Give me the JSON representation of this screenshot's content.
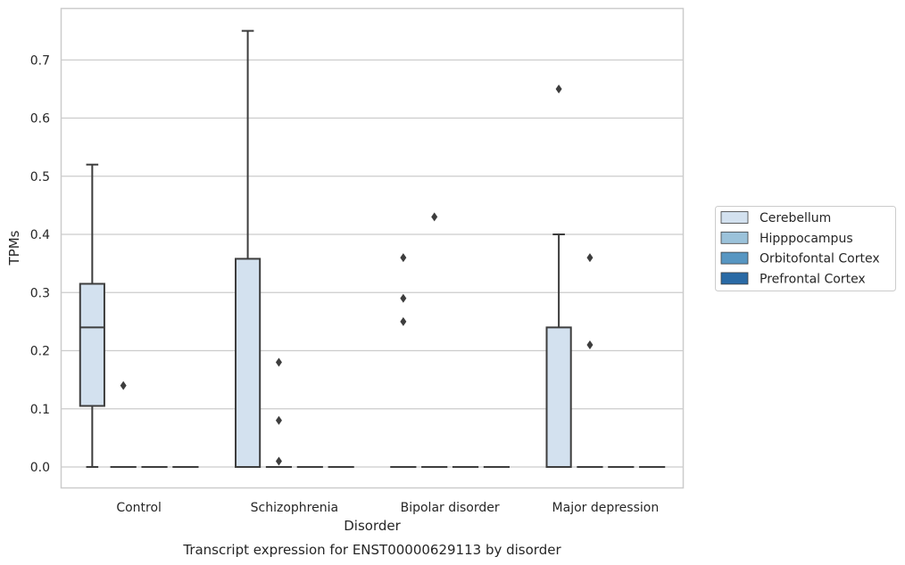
{
  "chart_data": {
    "type": "box",
    "caption": "Transcript expression for ENST00000629113 by disorder",
    "xlabel": "Disorder",
    "ylabel": "TPMs",
    "ylim": [
      -0.035,
      0.79
    ],
    "yticks": [
      0.0,
      0.1,
      0.2,
      0.3,
      0.4,
      0.5,
      0.6,
      0.7
    ],
    "ytick_labels": [
      "0.0",
      "0.1",
      "0.2",
      "0.3",
      "0.4",
      "0.5",
      "0.6",
      "0.7"
    ],
    "grid": "horizontal",
    "legend_position": "right",
    "categories": [
      "Control",
      "Schizophrenia",
      "Bipolar disorder",
      "Major depression"
    ],
    "series": [
      {
        "name": "Cerebellum",
        "color": "#d3e1ef",
        "boxes": [
          {
            "whislo": 0.0,
            "q1": 0.105,
            "med": 0.24,
            "q3": 0.315,
            "whishi": 0.52,
            "fliers": []
          },
          {
            "whislo": 0.0,
            "q1": 0.0,
            "med": 0.0,
            "q3": 0.358,
            "whishi": 0.75,
            "fliers": []
          },
          {
            "whislo": 0.0,
            "q1": 0.0,
            "med": 0.0,
            "q3": 0.0,
            "whishi": 0.0,
            "fliers": [
              0.25,
              0.29,
              0.36
            ]
          },
          {
            "whislo": 0.0,
            "q1": 0.0,
            "med": 0.0,
            "q3": 0.24,
            "whishi": 0.4,
            "fliers": [
              0.65
            ]
          }
        ]
      },
      {
        "name": "Hipppocampus",
        "color": "#9bc2da",
        "boxes": [
          {
            "whislo": 0.0,
            "q1": 0.0,
            "med": 0.0,
            "q3": 0.0,
            "whishi": 0.0,
            "fliers": [
              0.14
            ]
          },
          {
            "whislo": 0.0,
            "q1": 0.0,
            "med": 0.0,
            "q3": 0.0,
            "whishi": 0.0,
            "fliers": [
              0.01,
              0.08,
              0.18
            ]
          },
          {
            "whislo": 0.0,
            "q1": 0.0,
            "med": 0.0,
            "q3": 0.0,
            "whishi": 0.0,
            "fliers": [
              0.43
            ]
          },
          {
            "whislo": 0.0,
            "q1": 0.0,
            "med": 0.0,
            "q3": 0.0,
            "whishi": 0.0,
            "fliers": [
              0.21,
              0.36
            ]
          }
        ]
      },
      {
        "name": "Orbitofontal Cortex",
        "color": "#5796c2",
        "boxes": [
          {
            "whislo": 0.0,
            "q1": 0.0,
            "med": 0.0,
            "q3": 0.0,
            "whishi": 0.0,
            "fliers": []
          },
          {
            "whislo": 0.0,
            "q1": 0.0,
            "med": 0.0,
            "q3": 0.0,
            "whishi": 0.0,
            "fliers": []
          },
          {
            "whislo": 0.0,
            "q1": 0.0,
            "med": 0.0,
            "q3": 0.0,
            "whishi": 0.0,
            "fliers": []
          },
          {
            "whislo": 0.0,
            "q1": 0.0,
            "med": 0.0,
            "q3": 0.0,
            "whishi": 0.0,
            "fliers": []
          }
        ]
      },
      {
        "name": "Prefrontal Cortex",
        "color": "#2a6aa5",
        "boxes": [
          {
            "whislo": 0.0,
            "q1": 0.0,
            "med": 0.0,
            "q3": 0.0,
            "whishi": 0.0,
            "fliers": []
          },
          {
            "whislo": 0.0,
            "q1": 0.0,
            "med": 0.0,
            "q3": 0.0,
            "whishi": 0.0,
            "fliers": []
          },
          {
            "whislo": 0.0,
            "q1": 0.0,
            "med": 0.0,
            "q3": 0.0,
            "whishi": 0.0,
            "fliers": []
          },
          {
            "whislo": 0.0,
            "q1": 0.0,
            "med": 0.0,
            "q3": 0.0,
            "whishi": 0.0,
            "fliers": []
          }
        ]
      }
    ]
  }
}
